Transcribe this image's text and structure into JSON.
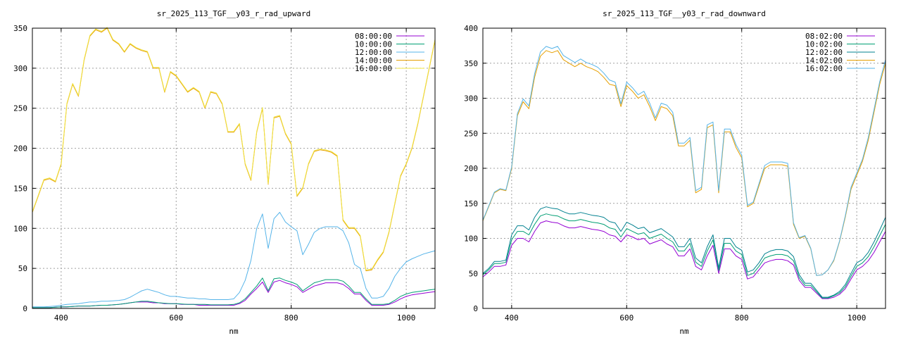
{
  "chart_data": [
    {
      "type": "line",
      "title": "sr_2025_113_TGF__y03_r_rad_upward",
      "xlabel": "nm",
      "ylabel": "",
      "xlim": [
        350,
        1050
      ],
      "ylim": [
        0,
        350
      ],
      "xticks": [
        400,
        600,
        800,
        1000
      ],
      "yticks": [
        0,
        50,
        100,
        150,
        200,
        250,
        300,
        350
      ],
      "grid": true,
      "legend": "top-right",
      "x": [
        350,
        360,
        370,
        380,
        390,
        400,
        410,
        420,
        430,
        440,
        450,
        460,
        470,
        480,
        490,
        500,
        510,
        520,
        530,
        540,
        550,
        560,
        570,
        580,
        590,
        600,
        610,
        620,
        630,
        640,
        650,
        660,
        670,
        680,
        690,
        700,
        710,
        720,
        730,
        740,
        750,
        760,
        770,
        780,
        790,
        800,
        810,
        820,
        830,
        840,
        850,
        860,
        870,
        880,
        890,
        900,
        910,
        920,
        930,
        940,
        950,
        960,
        970,
        980,
        990,
        1000,
        1010,
        1020,
        1030,
        1040,
        1050
      ],
      "series": [
        {
          "name": "08:00:00",
          "color": "#9400d3",
          "values": [
            1,
            1,
            1,
            1,
            1.5,
            2,
            2,
            2.5,
            3,
            3,
            3,
            3.5,
            4,
            4,
            4.5,
            5,
            6,
            7,
            8,
            8,
            8,
            7,
            7,
            6,
            6,
            6,
            5,
            5,
            5,
            4,
            4,
            4,
            4,
            4,
            4,
            4,
            6,
            10,
            18,
            25,
            33,
            20,
            33,
            35,
            32,
            30,
            27,
            20,
            24,
            28,
            30,
            32,
            32,
            32,
            30,
            25,
            18,
            18,
            10,
            4,
            4,
            4,
            5,
            8,
            12,
            15,
            17,
            18,
            19,
            20,
            21
          ]
        },
        {
          "name": "10:00:00",
          "color": "#009e73",
          "values": [
            1,
            1,
            1,
            1,
            1.5,
            2,
            2,
            2.5,
            3,
            3,
            3,
            3.5,
            4,
            4,
            4.5,
            5,
            6,
            7,
            8,
            9,
            9,
            8,
            7,
            6.5,
            6,
            6,
            5.5,
            5,
            5,
            5,
            5,
            4.5,
            4.5,
            4.5,
            4.5,
            5,
            7,
            12,
            20,
            28,
            38,
            22,
            37,
            38,
            35,
            33,
            30,
            22,
            27,
            32,
            34,
            36,
            36,
            36,
            34,
            28,
            20,
            20,
            12,
            5,
            5,
            5,
            6,
            10,
            15,
            18,
            20,
            21,
            22,
            23,
            24
          ]
        },
        {
          "name": "12:00:00",
          "color": "#56b4e9",
          "values": [
            2,
            2,
            2,
            2.5,
            3,
            4,
            5,
            5.5,
            6,
            7,
            8,
            8,
            9,
            9,
            9.5,
            10,
            11,
            14,
            18,
            22,
            24,
            22,
            20,
            17,
            15,
            15,
            14,
            13,
            13,
            12,
            12,
            11,
            11,
            11,
            11,
            12,
            20,
            35,
            60,
            100,
            118,
            75,
            112,
            120,
            108,
            102,
            97,
            67,
            80,
            95,
            100,
            102,
            102,
            102,
            97,
            82,
            55,
            50,
            25,
            13,
            13,
            15,
            25,
            40,
            50,
            58,
            62,
            65,
            68,
            70,
            72
          ]
        },
        {
          "name": "14:00:00",
          "color": "#e69f00",
          "values": [
            120,
            140,
            160,
            162,
            158,
            180,
            255,
            280,
            265,
            310,
            340,
            348,
            345,
            350,
            335,
            330,
            320,
            330,
            325,
            322,
            320,
            300,
            300,
            270,
            295,
            290,
            280,
            270,
            275,
            270,
            250,
            270,
            268,
            255,
            220,
            220,
            230,
            180,
            160,
            220,
            250,
            155,
            238,
            240,
            218,
            205,
            140,
            150,
            180,
            196,
            198,
            197,
            195,
            190,
            110,
            100,
            100,
            90,
            47,
            48,
            60,
            70,
            95,
            130,
            165,
            180,
            200,
            230,
            265,
            300,
            335
          ]
        },
        {
          "name": "16:00:00",
          "color": "#f0e442",
          "values": [
            121,
            141,
            161,
            163,
            159,
            181,
            256,
            281,
            266,
            311,
            341,
            349,
            346,
            351,
            336,
            331,
            321,
            331,
            326,
            323,
            321,
            301,
            301,
            271,
            296,
            291,
            281,
            271,
            276,
            271,
            251,
            271,
            269,
            256,
            221,
            221,
            231,
            181,
            161,
            221,
            251,
            156,
            239,
            241,
            219,
            206,
            141,
            151,
            181,
            197,
            199,
            198,
            196,
            191,
            111,
            101,
            101,
            91,
            48,
            49,
            61,
            71,
            96,
            131,
            166,
            181,
            201,
            231,
            266,
            301,
            336
          ]
        }
      ]
    },
    {
      "type": "line",
      "title": "sr_2025_113_TGF__y03_r_rad_downward",
      "xlabel": "nm",
      "ylabel": "",
      "xlim": [
        350,
        1050
      ],
      "ylim": [
        0,
        400
      ],
      "xticks": [
        400,
        600,
        800,
        1000
      ],
      "yticks": [
        0,
        50,
        100,
        150,
        200,
        250,
        300,
        350,
        400
      ],
      "grid": true,
      "legend": "top-right",
      "x": [
        350,
        360,
        370,
        380,
        390,
        400,
        410,
        420,
        430,
        440,
        450,
        460,
        470,
        480,
        490,
        500,
        510,
        520,
        530,
        540,
        550,
        560,
        570,
        580,
        590,
        600,
        610,
        620,
        630,
        640,
        650,
        660,
        670,
        680,
        690,
        700,
        710,
        720,
        730,
        740,
        750,
        760,
        770,
        780,
        790,
        800,
        810,
        820,
        830,
        840,
        850,
        860,
        870,
        880,
        890,
        900,
        910,
        920,
        930,
        940,
        950,
        960,
        970,
        980,
        990,
        1000,
        1010,
        1020,
        1030,
        1040,
        1050
      ],
      "series": [
        {
          "name": "08:02:00",
          "color": "#9400d3",
          "values": [
            45,
            52,
            60,
            60,
            62,
            90,
            100,
            100,
            95,
            110,
            122,
            125,
            123,
            122,
            118,
            115,
            115,
            117,
            115,
            113,
            112,
            110,
            105,
            103,
            95,
            105,
            102,
            98,
            100,
            92,
            95,
            98,
            92,
            88,
            75,
            75,
            85,
            60,
            55,
            75,
            90,
            50,
            85,
            85,
            75,
            70,
            42,
            45,
            55,
            65,
            68,
            70,
            70,
            68,
            62,
            40,
            30,
            30,
            22,
            14,
            14,
            16,
            20,
            28,
            42,
            55,
            60,
            68,
            80,
            95,
            110
          ]
        },
        {
          "name": "10:02:00",
          "color": "#009e73",
          "values": [
            48,
            55,
            64,
            64,
            66,
            98,
            110,
            110,
            105,
            120,
            132,
            135,
            133,
            132,
            128,
            125,
            125,
            127,
            125,
            123,
            122,
            120,
            115,
            113,
            102,
            114,
            110,
            106,
            108,
            100,
            103,
            106,
            100,
            95,
            82,
            82,
            93,
            66,
            60,
            82,
            98,
            54,
            93,
            93,
            82,
            77,
            47,
            50,
            60,
            72,
            75,
            77,
            77,
            75,
            68,
            44,
            33,
            33,
            24,
            15,
            15,
            18,
            22,
            31,
            46,
            60,
            65,
            74,
            88,
            104,
            120
          ]
        },
        {
          "name": "12:02:00",
          "color": "#00808f",
          "values": [
            50,
            57,
            67,
            67,
            69,
            105,
            118,
            118,
            112,
            130,
            142,
            145,
            143,
            142,
            138,
            135,
            135,
            137,
            135,
            133,
            132,
            130,
            124,
            122,
            110,
            123,
            119,
            114,
            116,
            108,
            111,
            114,
            108,
            102,
            88,
            88,
            100,
            72,
            65,
            88,
            105,
            58,
            100,
            100,
            88,
            83,
            52,
            55,
            65,
            78,
            82,
            84,
            84,
            82,
            74,
            48,
            36,
            36,
            26,
            16,
            16,
            19,
            24,
            34,
            50,
            65,
            70,
            80,
            95,
            112,
            130
          ]
        },
        {
          "name": "14:02:00",
          "color": "#e69f00",
          "values": [
            125,
            145,
            165,
            170,
            168,
            200,
            275,
            295,
            285,
            330,
            360,
            368,
            365,
            368,
            355,
            350,
            345,
            350,
            345,
            342,
            338,
            330,
            320,
            318,
            288,
            318,
            310,
            300,
            305,
            288,
            268,
            288,
            285,
            275,
            232,
            232,
            240,
            165,
            170,
            258,
            262,
            165,
            252,
            252,
            230,
            215,
            145,
            150,
            175,
            200,
            205,
            205,
            205,
            203,
            120,
            100,
            103,
            85,
            47,
            48,
            55,
            68,
            95,
            130,
            170,
            190,
            210,
            240,
            280,
            320,
            350
          ]
        },
        {
          "name": "16:02:00",
          "color": "#56b4e9",
          "values": [
            126,
            146,
            166,
            171,
            169,
            202,
            278,
            299,
            289,
            335,
            366,
            374,
            371,
            374,
            361,
            356,
            351,
            356,
            351,
            348,
            344,
            336,
            326,
            323,
            292,
            323,
            315,
            305,
            310,
            293,
            272,
            293,
            290,
            280,
            236,
            236,
            244,
            168,
            173,
            262,
            266,
            168,
            256,
            256,
            234,
            219,
            147,
            152,
            178,
            204,
            209,
            209,
            209,
            207,
            122,
            101,
            104,
            86,
            47,
            48,
            55,
            69,
            96,
            132,
            173,
            193,
            213,
            244,
            284,
            324,
            355
          ]
        }
      ]
    }
  ]
}
